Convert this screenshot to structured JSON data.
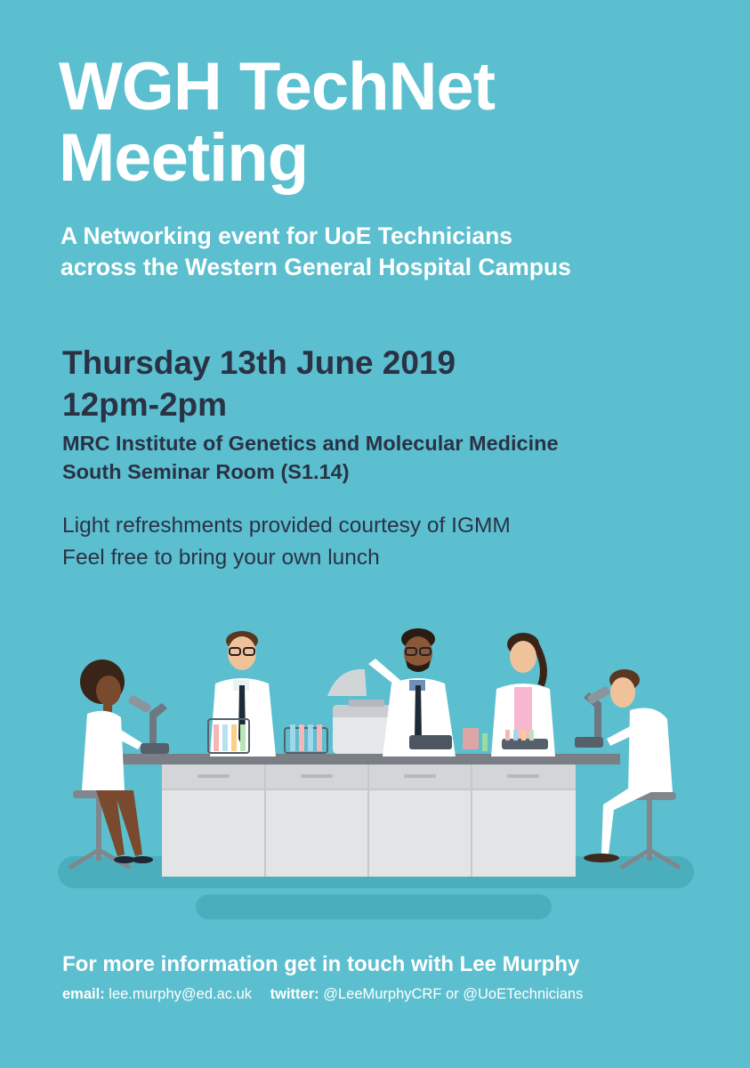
{
  "poster": {
    "title_line1": "WGH TechNet",
    "title_line2": "Meeting",
    "subtitle_line1": "A Networking event for UoE Technicians",
    "subtitle_line2": "across the Western General Hospital Campus",
    "date": "Thursday 13th June 2019",
    "time": "12pm-2pm",
    "venue_line1": "MRC Institute of Genetics and Molecular Medicine",
    "venue_line2": "South Seminar Room (S1.14)",
    "note_line1": "Light refreshments provided courtesy of IGMM",
    "note_line2": "Feel free to bring your own lunch",
    "contact_heading": "For more information get in touch with Lee Murphy",
    "email_label": "email:",
    "email_value": "lee.murphy@ed.ac.uk",
    "twitter_label": "twitter:",
    "twitter_value": "@LeeMurphyCRF or @UoETechnicians"
  },
  "colors": {
    "background": "#5bbfcf",
    "heading_text": "#ffffff",
    "body_text": "#2a3245"
  },
  "illustration": {
    "subject": "five scientists working at a laboratory bench with microscopes, test tubes and a centrifuge"
  }
}
